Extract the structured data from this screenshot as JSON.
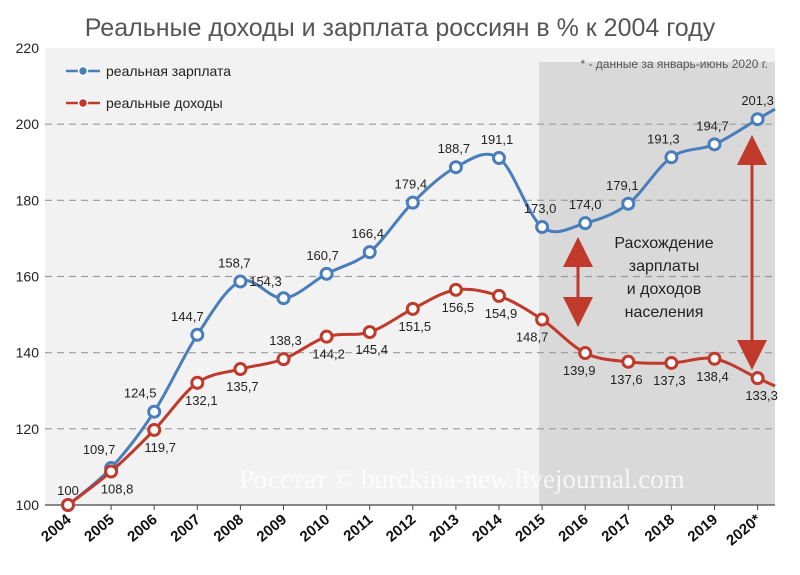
{
  "chart_data": {
    "type": "line",
    "title": "Реальные доходы и зарплата россиян в % к 2004 году",
    "note": "* - данные за январь-июнь 2020 г.",
    "categories": [
      "2004",
      "2005",
      "2006",
      "2007",
      "2008",
      "2009",
      "2010",
      "2011",
      "2012",
      "2013",
      "2014",
      "2015",
      "2016",
      "2017",
      "2018",
      "2019",
      "2020*"
    ],
    "ylim": [
      100,
      220
    ],
    "yticks": [
      100,
      120,
      140,
      160,
      180,
      200,
      220
    ],
    "grid": true,
    "legend_position": "top-left",
    "shaded_from_category": "2015",
    "series": [
      {
        "name": "реальная зарплата",
        "color": "#4a7ebb",
        "values": [
          100,
          109.7,
          124.5,
          144.7,
          158.7,
          154.3,
          160.7,
          166.4,
          179.4,
          188.7,
          191.1,
          173.0,
          174.0,
          179.1,
          191.3,
          194.7,
          201.3
        ],
        "labels": [
          "100",
          "109,7",
          "124,5",
          "144,7",
          "158,7",
          "154,3",
          "160,7",
          "166,4",
          "179,4",
          "188,7",
          "191,1",
          "173,0",
          "174,0",
          "179,1",
          "191,3",
          "194,7",
          "201,3"
        ]
      },
      {
        "name": "реальные доходы",
        "color": "#c0392b",
        "values": [
          100,
          108.8,
          119.7,
          132.1,
          135.7,
          138.3,
          144.2,
          145.4,
          151.5,
          156.5,
          154.9,
          148.7,
          139.9,
          137.6,
          137.3,
          138.4,
          133.3
        ],
        "labels": [
          "",
          "108,8",
          "119,7",
          "132,1",
          "135,7",
          "138,3",
          "144,2",
          "145,4",
          "151,5",
          "156,5",
          "154,9",
          "148,7",
          "139,9",
          "137,6",
          "137,3",
          "138,4",
          "133,3"
        ]
      }
    ],
    "annotation": "Расхождение зарплаты и доходов населения",
    "watermark": "Росстат © burckina-new.livejournal.com"
  }
}
